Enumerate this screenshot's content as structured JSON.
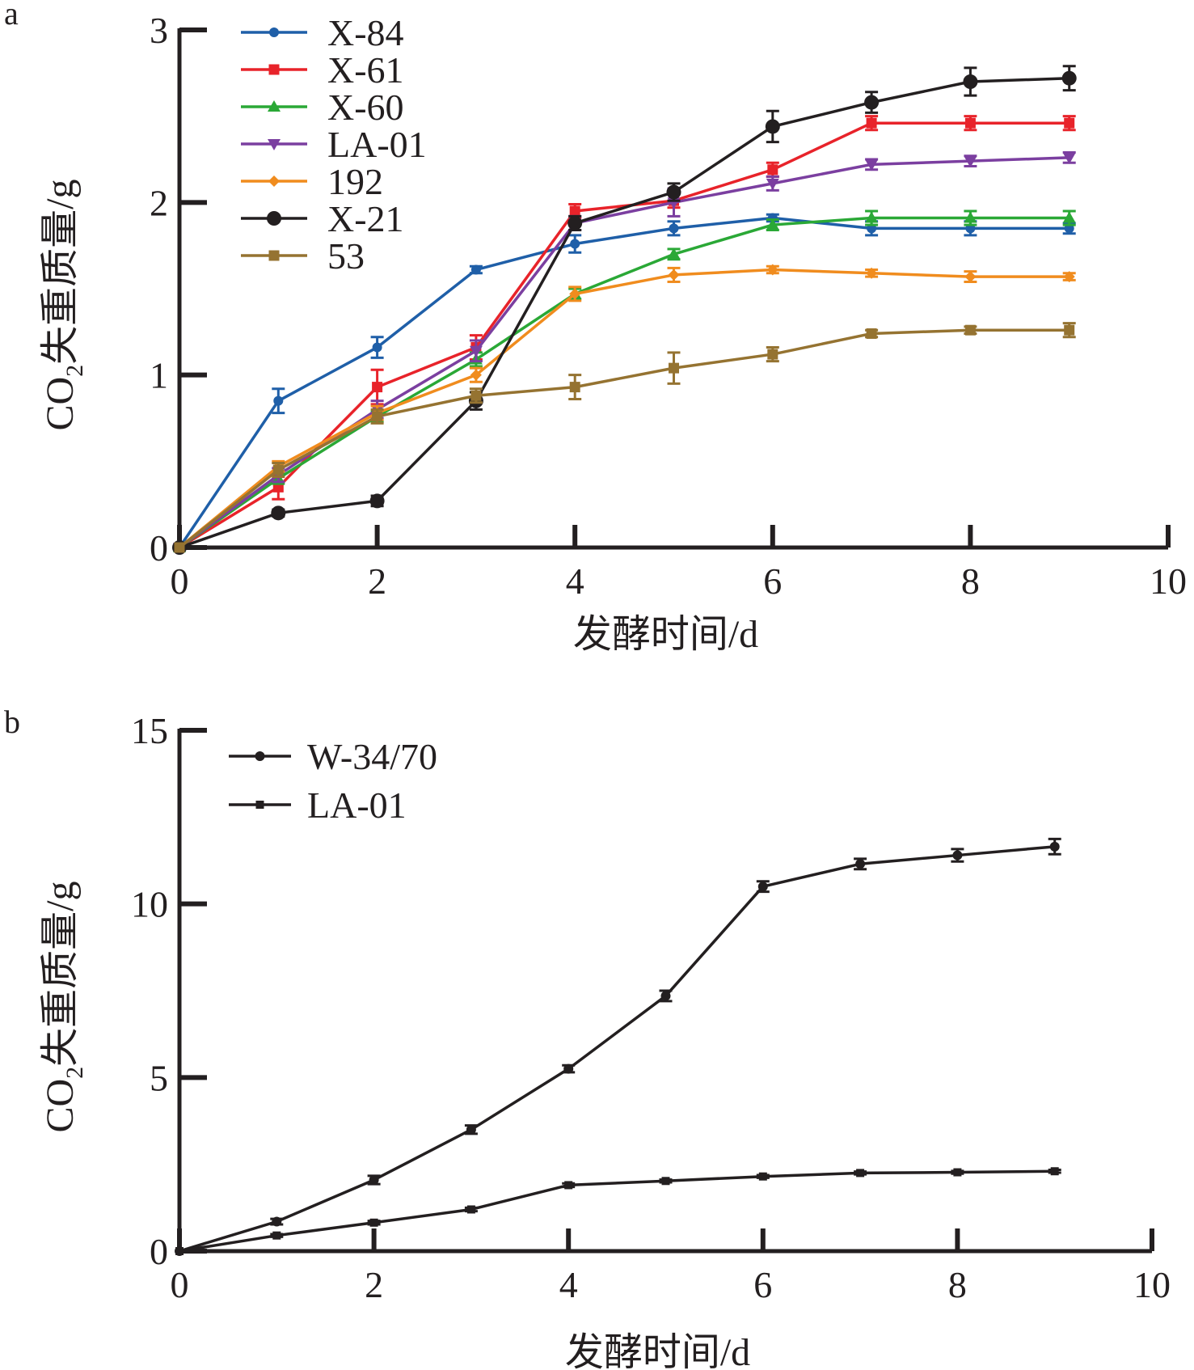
{
  "chart_data": [
    {
      "panel": "a",
      "type": "line",
      "xlabel": "发酵时间/d",
      "ylabel_main": "CO",
      "ylabel_sub": "2",
      "ylabel_rest": "失重质量/g",
      "xlim": [
        0,
        10
      ],
      "ylim": [
        0,
        3
      ],
      "xticks": [
        0,
        2,
        4,
        6,
        8,
        10
      ],
      "yticks": [
        0,
        1,
        2,
        3
      ],
      "legend_position": "top-left",
      "x": [
        0,
        1,
        2,
        3,
        4,
        5,
        6,
        7,
        8,
        9
      ],
      "series": [
        {
          "name": "X-84",
          "color": "#1f5fa8",
          "marker": "circle-small",
          "values": [
            0,
            0.85,
            1.16,
            1.61,
            1.76,
            1.85,
            1.91,
            1.85,
            1.85,
            1.85
          ],
          "errors": [
            0,
            0.07,
            0.06,
            0.02,
            0.05,
            0.04,
            0.02,
            0.04,
            0.04,
            0.03
          ]
        },
        {
          "name": "X-61",
          "color": "#e8232a",
          "marker": "square",
          "values": [
            0,
            0.35,
            0.93,
            1.16,
            1.95,
            2.01,
            2.19,
            2.46,
            2.46,
            2.46
          ],
          "errors": [
            0,
            0.07,
            0.1,
            0.07,
            0.04,
            0.04,
            0.04,
            0.04,
            0.04,
            0.04
          ]
        },
        {
          "name": "X-60",
          "color": "#2aa836",
          "marker": "triangle-up",
          "values": [
            0,
            0.4,
            0.76,
            1.09,
            1.47,
            1.7,
            1.87,
            1.91,
            1.91,
            1.91
          ],
          "errors": [
            0,
            0.03,
            0.03,
            0.04,
            0.03,
            0.03,
            0.03,
            0.04,
            0.04,
            0.04
          ]
        },
        {
          "name": "LA-01",
          "color": "#7b3fa0",
          "marker": "triangle-down",
          "values": [
            0,
            0.42,
            0.8,
            1.14,
            1.88,
            2.0,
            2.11,
            2.22,
            2.24,
            2.26
          ],
          "errors": [
            0,
            0.04,
            0.05,
            0.06,
            0.04,
            0.08,
            0.04,
            0.03,
            0.03,
            0.03
          ]
        },
        {
          "name": "192",
          "color": "#f08c1e",
          "marker": "diamond",
          "values": [
            0,
            0.47,
            0.78,
            1.0,
            1.47,
            1.58,
            1.61,
            1.59,
            1.57,
            1.57
          ],
          "errors": [
            0,
            0.03,
            0.04,
            0.04,
            0.04,
            0.04,
            0.02,
            0.02,
            0.03,
            0.02
          ]
        },
        {
          "name": "X-21",
          "color": "#231f20",
          "marker": "circle",
          "values": [
            0,
            0.2,
            0.27,
            0.85,
            1.88,
            2.06,
            2.44,
            2.58,
            2.7,
            2.72
          ],
          "errors": [
            0,
            0.02,
            0.03,
            0.05,
            0.04,
            0.05,
            0.09,
            0.06,
            0.08,
            0.07
          ]
        },
        {
          "name": "53",
          "color": "#957331",
          "marker": "square",
          "values": [
            0,
            0.45,
            0.76,
            0.88,
            0.93,
            1.04,
            1.12,
            1.24,
            1.26,
            1.26
          ],
          "errors": [
            0,
            0.04,
            0.04,
            0.04,
            0.07,
            0.09,
            0.04,
            0.02,
            0.02,
            0.04
          ]
        }
      ]
    },
    {
      "panel": "b",
      "type": "line",
      "xlabel": "发酵时间/d",
      "ylabel_main": "CO",
      "ylabel_sub": "2",
      "ylabel_rest": "失重质量/g",
      "xlim": [
        0,
        10
      ],
      "ylim": [
        0,
        15
      ],
      "xticks": [
        0,
        2,
        4,
        6,
        8,
        10
      ],
      "yticks": [
        0,
        5,
        10,
        15
      ],
      "legend_position": "top-left",
      "x": [
        0,
        1,
        2,
        3,
        4,
        5,
        6,
        7,
        8,
        9
      ],
      "series": [
        {
          "name": "W-34/70",
          "color": "#231f20",
          "marker": "circle-small",
          "values": [
            0,
            0.85,
            2.05,
            3.5,
            5.25,
            7.35,
            10.5,
            11.15,
            11.4,
            11.65
          ],
          "errors": [
            0,
            0.08,
            0.12,
            0.12,
            0.1,
            0.15,
            0.15,
            0.15,
            0.18,
            0.22
          ]
        },
        {
          "name": "LA-01",
          "color": "#231f20",
          "marker": "square-small",
          "values": [
            0,
            0.45,
            0.82,
            1.2,
            1.9,
            2.02,
            2.15,
            2.25,
            2.27,
            2.3
          ],
          "errors": [
            0,
            0.04,
            0.05,
            0.05,
            0.05,
            0.04,
            0.04,
            0.04,
            0.04,
            0.04
          ]
        }
      ]
    }
  ]
}
